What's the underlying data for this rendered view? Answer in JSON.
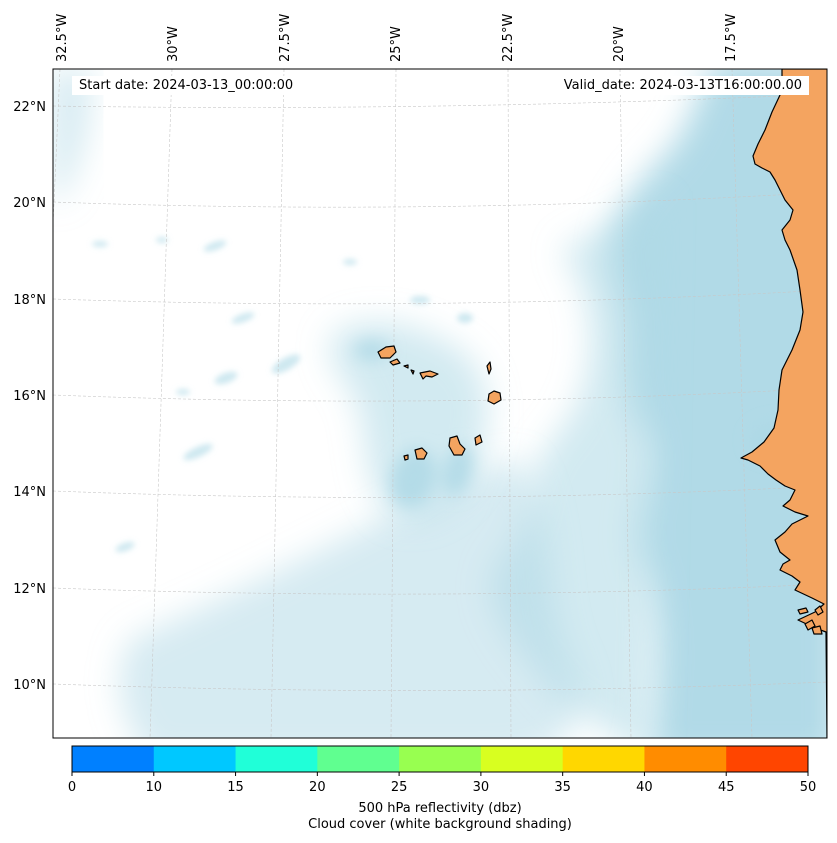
{
  "header": {
    "start_date": "Start date: 2024-03-13_00:00:00",
    "valid_date": "Valid_date: 2024-03-13T16:00:00.00"
  },
  "map": {
    "lon_labels": [
      "32.5°W",
      "30°W",
      "27.5°W",
      "25°W",
      "22.5°W",
      "20°W",
      "17.5°W"
    ],
    "lat_labels": [
      "22°N",
      "20°N",
      "18°N",
      "16°N",
      "14°N",
      "12°N",
      "10°N"
    ],
    "colors": {
      "land": "#f4a460",
      "cloud": "#add8e6",
      "coast": "#000000",
      "grid": "#c8c8c8"
    }
  },
  "colorbar": {
    "ticks": [
      "0",
      "10",
      "15",
      "20",
      "25",
      "30",
      "35",
      "40",
      "45",
      "50"
    ],
    "colors": [
      "#0080ff",
      "#00c8ff",
      "#20ffd8",
      "#60ff90",
      "#98ff50",
      "#d8ff20",
      "#ffd700",
      "#ff8c00",
      "#ff4500"
    ],
    "label_line1": "500 hPa reflectivity (dbz)",
    "label_line2": "Cloud cover (white background shading)"
  }
}
